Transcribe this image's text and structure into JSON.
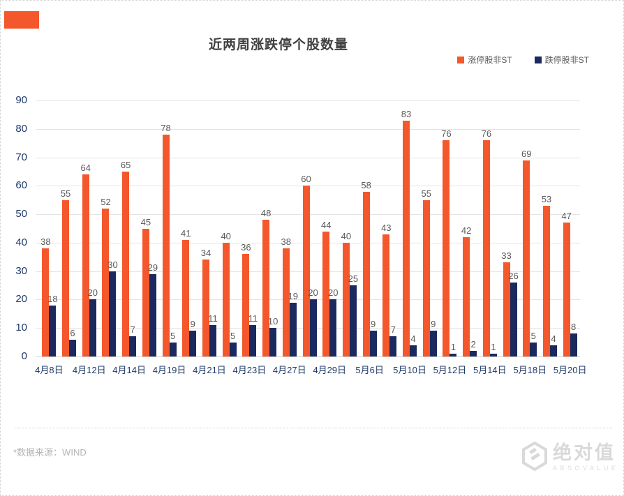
{
  "page": {
    "accent_color": "#f4572b",
    "background": "#ffffff"
  },
  "header": {
    "title": "近两周涨跌停个股数量"
  },
  "legend": {
    "items": [
      {
        "label": "涨停股非ST",
        "color": "#f4572b"
      },
      {
        "label": "跌停股非ST",
        "color": "#1a2a5e"
      }
    ]
  },
  "footer": {
    "source_note": "*数据来源：WIND",
    "watermark_cn": "绝对值",
    "watermark_en": "ABSOVALUE"
  },
  "chart_data": {
    "type": "bar",
    "title": "近两周涨跌停个股数量",
    "categories": [
      "4月8日",
      "",
      "4月12日",
      "",
      "4月14日",
      "",
      "4月19日",
      "",
      "4月21日",
      "",
      "4月23日",
      "",
      "4月27日",
      "",
      "4月29日",
      "",
      "5月6日",
      "",
      "5月10日",
      "",
      "5月12日",
      "",
      "5月14日",
      "",
      "5月18日",
      "",
      "5月20日"
    ],
    "series": [
      {
        "name": "涨停股非ST",
        "color": "#f4572b",
        "values": [
          38,
          55,
          64,
          52,
          65,
          45,
          78,
          41,
          34,
          40,
          36,
          48,
          38,
          60,
          44,
          40,
          58,
          43,
          83,
          55,
          76,
          42,
          76,
          33,
          69,
          53,
          47
        ]
      },
      {
        "name": "跌停股非ST",
        "color": "#1a2a5e",
        "values": [
          18,
          6,
          20,
          30,
          7,
          29,
          5,
          9,
          11,
          5,
          11,
          10,
          19,
          20,
          20,
          25,
          9,
          7,
          4,
          9,
          1,
          2,
          1,
          26,
          5,
          4,
          8
        ]
      }
    ],
    "xlabel": "",
    "ylabel": "",
    "ylim": [
      0,
      90
    ],
    "ytick_interval": 10,
    "grid": true,
    "legend_position": "top-right",
    "value_labels": true
  }
}
